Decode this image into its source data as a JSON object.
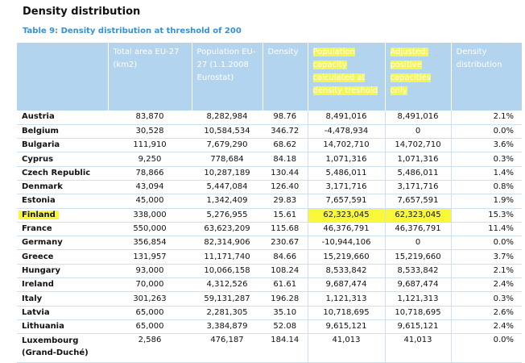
{
  "heading": "Density distribution",
  "caption": "Table 9: Density distribution at threshold of 200",
  "headers": {
    "country": "",
    "area": "Total area EU-27 (km2)",
    "population": "Population EU-27 (1.1.2008 Eurostat)",
    "density": "Density",
    "capacity": "Population capacity calculated at density treshold",
    "adjusted": "Adjusted: positive capacities only",
    "distribution": "Density distribution"
  },
  "rows": [
    {
      "country": "Austria",
      "area": "83,870",
      "population": "8,282,984",
      "density": "98.76",
      "capacity": "8,491,016",
      "adjusted": "8,491,016",
      "distribution": "2.1%"
    },
    {
      "country": "Belgium",
      "area": "30,528",
      "population": "10,584,534",
      "density": "346.72",
      "capacity": "-4,478,934",
      "adjusted": "0",
      "distribution": "0.0%"
    },
    {
      "country": "Bulgaria",
      "area": "111,910",
      "population": "7,679,290",
      "density": "68.62",
      "capacity": "14,702,710",
      "adjusted": "14,702,710",
      "distribution": "3.6%"
    },
    {
      "country": "Cyprus",
      "area": "9,250",
      "population": "778,684",
      "density": "84.18",
      "capacity": "1,071,316",
      "adjusted": "1,071,316",
      "distribution": "0.3%"
    },
    {
      "country": "Czech Republic",
      "area": "78,866",
      "population": "10,287,189",
      "density": "130.44",
      "capacity": "5,486,011",
      "adjusted": "5,486,011",
      "distribution": "1.4%"
    },
    {
      "country": "Denmark",
      "area": "43,094",
      "population": "5,447,084",
      "density": "126.40",
      "capacity": "3,171,716",
      "adjusted": "3,171,716",
      "distribution": "0.8%"
    },
    {
      "country": "Estonia",
      "area": "45,000",
      "population": "1,342,409",
      "density": "29.83",
      "capacity": "7,657,591",
      "adjusted": "7,657,591",
      "distribution": "1.9%"
    },
    {
      "country": "Finland",
      "area": "338,000",
      "population": "5,276,955",
      "density": "15.61",
      "capacity": "62,323,045",
      "adjusted": "62,323,045",
      "distribution": "15.3%"
    },
    {
      "country": "France",
      "area": "550,000",
      "population": "63,623,209",
      "density": "115.68",
      "capacity": "46,376,791",
      "adjusted": "46,376,791",
      "distribution": "11.4%"
    },
    {
      "country": "Germany",
      "area": "356,854",
      "population": "82,314,906",
      "density": "230.67",
      "capacity": "-10,944,106",
      "adjusted": "0",
      "distribution": "0.0%"
    },
    {
      "country": "Greece",
      "area": "131,957",
      "population": "11,171,740",
      "density": "84.66",
      "capacity": "15,219,660",
      "adjusted": "15,219,660",
      "distribution": "3.7%"
    },
    {
      "country": "Hungary",
      "area": "93,000",
      "population": "10,066,158",
      "density": "108.24",
      "capacity": "8,533,842",
      "adjusted": "8,533,842",
      "distribution": "2.1%"
    },
    {
      "country": "Ireland",
      "area": "70,000",
      "population": "4,312,526",
      "density": "61.61",
      "capacity": "9,687,474",
      "adjusted": "9,687,474",
      "distribution": "2.4%"
    },
    {
      "country": "Italy",
      "area": "301,263",
      "population": "59,131,287",
      "density": "196.28",
      "capacity": "1,121,313",
      "adjusted": "1,121,313",
      "distribution": "0.3%"
    },
    {
      "country": "Latvia",
      "area": "65,000",
      "population": "2,281,305",
      "density": "35.10",
      "capacity": "10,718,695",
      "adjusted": "10,718,695",
      "distribution": "2.6%"
    },
    {
      "country": "Lithuania",
      "area": "65,000",
      "population": "3,384,879",
      "density": "52.08",
      "capacity": "9,615,121",
      "adjusted": "9,615,121",
      "distribution": "2.4%"
    },
    {
      "country": "Luxembourg (Grand-Duché)",
      "area": "2,586",
      "population": "476,187",
      "density": "184.14",
      "capacity": "41,013",
      "adjusted": "41,013",
      "distribution": "0.0%"
    }
  ],
  "highlights": {
    "color": "#f9f93a",
    "header_columns": [
      "capacity",
      "adjusted"
    ],
    "row_country": "Finland",
    "row_columns": [
      "country",
      "capacity",
      "adjusted"
    ]
  },
  "colors": {
    "header_bg": "#b3d4ee",
    "caption": "#3a8fd0",
    "rule": "#cfe1f1"
  }
}
